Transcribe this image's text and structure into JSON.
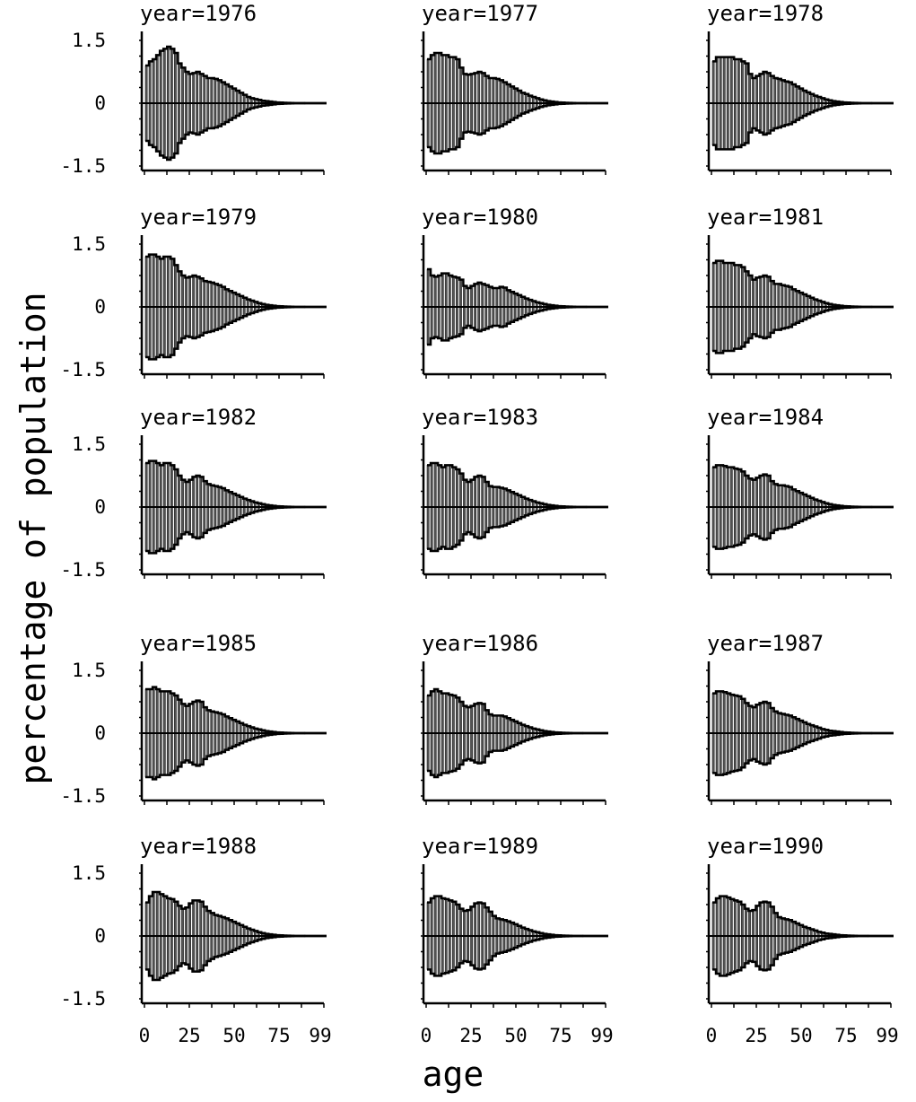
{
  "figure": {
    "ylabel": "percentage of population",
    "xlabel": "age"
  },
  "chart_data": {
    "type": "bar",
    "layout": "small-multiples 5 rows x 3 columns",
    "x_ticks": [
      "0",
      "25",
      "50",
      "75",
      "99"
    ],
    "y_ticks": [
      "1.5",
      "0",
      "-1.5"
    ],
    "xlim": [
      0,
      99
    ],
    "ylim": [
      -1.5,
      1.5
    ],
    "ages": [
      0,
      2,
      4,
      6,
      8,
      10,
      12,
      14,
      16,
      18,
      20,
      22,
      24,
      26,
      28,
      30,
      32,
      34,
      36,
      38,
      40,
      42,
      44,
      46,
      48,
      50,
      52,
      54,
      56,
      58,
      60,
      62,
      64,
      66,
      68,
      70,
      72,
      74,
      76,
      78,
      80,
      82,
      84,
      86,
      88,
      90,
      92,
      94,
      96,
      98
    ],
    "panels": [
      {
        "year": "1976",
        "title": "year=1976",
        "values": [
          0.9,
          1.0,
          1.05,
          1.15,
          1.25,
          1.3,
          1.35,
          1.3,
          1.2,
          0.95,
          0.85,
          0.75,
          0.7,
          0.72,
          0.75,
          0.7,
          0.65,
          0.6,
          0.6,
          0.58,
          0.55,
          0.5,
          0.45,
          0.4,
          0.35,
          0.3,
          0.25,
          0.2,
          0.15,
          0.12,
          0.1,
          0.08,
          0.06,
          0.05,
          0.04,
          0.03,
          0.02,
          0.015,
          0.01,
          0.008,
          0.005,
          0.004,
          0.003,
          0.002,
          0.001,
          0.001,
          0.001,
          0.0,
          0.0,
          0.0
        ]
      },
      {
        "year": "1977",
        "title": "year=1977",
        "values": [
          1.05,
          1.15,
          1.2,
          1.2,
          1.15,
          1.15,
          1.1,
          1.1,
          1.05,
          0.85,
          0.7,
          0.68,
          0.7,
          0.72,
          0.75,
          0.72,
          0.65,
          0.6,
          0.6,
          0.58,
          0.55,
          0.5,
          0.45,
          0.4,
          0.35,
          0.3,
          0.25,
          0.22,
          0.18,
          0.15,
          0.12,
          0.09,
          0.07,
          0.05,
          0.04,
          0.03,
          0.02,
          0.015,
          0.01,
          0.008,
          0.005,
          0.004,
          0.003,
          0.002,
          0.001,
          0.001,
          0.001,
          0.0,
          0.0,
          0.0
        ]
      },
      {
        "year": "1978",
        "title": "year=1978",
        "values": [
          1.0,
          1.1,
          1.1,
          1.1,
          1.1,
          1.1,
          1.05,
          1.05,
          1.0,
          0.95,
          0.7,
          0.6,
          0.65,
          0.7,
          0.75,
          0.72,
          0.65,
          0.6,
          0.58,
          0.55,
          0.52,
          0.5,
          0.45,
          0.4,
          0.35,
          0.3,
          0.26,
          0.22,
          0.18,
          0.15,
          0.12,
          0.09,
          0.07,
          0.05,
          0.04,
          0.03,
          0.02,
          0.015,
          0.01,
          0.008,
          0.005,
          0.004,
          0.003,
          0.002,
          0.001,
          0.001,
          0.001,
          0.0,
          0.0,
          0.0
        ]
      },
      {
        "year": "1979",
        "title": "year=1979",
        "values": [
          1.2,
          1.25,
          1.25,
          1.2,
          1.15,
          1.2,
          1.2,
          1.15,
          1.0,
          0.85,
          0.75,
          0.7,
          0.72,
          0.75,
          0.72,
          0.68,
          0.62,
          0.6,
          0.58,
          0.55,
          0.52,
          0.48,
          0.42,
          0.38,
          0.34,
          0.3,
          0.26,
          0.22,
          0.18,
          0.15,
          0.12,
          0.09,
          0.07,
          0.05,
          0.04,
          0.03,
          0.02,
          0.015,
          0.01,
          0.008,
          0.005,
          0.004,
          0.003,
          0.002,
          0.001,
          0.001,
          0.001,
          0.0,
          0.0,
          0.0
        ]
      },
      {
        "year": "1980",
        "title": "year=1980",
        "values": [
          0.9,
          0.75,
          0.72,
          0.75,
          0.8,
          0.8,
          0.75,
          0.72,
          0.7,
          0.65,
          0.5,
          0.45,
          0.5,
          0.55,
          0.58,
          0.55,
          0.52,
          0.48,
          0.45,
          0.45,
          0.48,
          0.46,
          0.4,
          0.36,
          0.32,
          0.28,
          0.24,
          0.2,
          0.17,
          0.14,
          0.11,
          0.09,
          0.07,
          0.05,
          0.04,
          0.03,
          0.02,
          0.015,
          0.01,
          0.008,
          0.005,
          0.004,
          0.003,
          0.002,
          0.001,
          0.001,
          0.001,
          0.0,
          0.0,
          0.0
        ]
      },
      {
        "year": "1981",
        "title": "year=1981",
        "values": [
          1.05,
          1.1,
          1.1,
          1.05,
          1.05,
          1.05,
          1.0,
          1.0,
          0.95,
          0.85,
          0.75,
          0.65,
          0.7,
          0.72,
          0.75,
          0.72,
          0.62,
          0.55,
          0.55,
          0.52,
          0.5,
          0.48,
          0.42,
          0.38,
          0.34,
          0.3,
          0.26,
          0.22,
          0.18,
          0.15,
          0.12,
          0.09,
          0.07,
          0.05,
          0.04,
          0.03,
          0.02,
          0.015,
          0.01,
          0.008,
          0.005,
          0.004,
          0.003,
          0.002,
          0.001,
          0.001,
          0.001,
          0.0,
          0.0,
          0.0
        ]
      },
      {
        "year": "1982",
        "title": "year=1982",
        "values": [
          1.05,
          1.1,
          1.1,
          1.05,
          1.0,
          1.05,
          1.05,
          1.0,
          0.9,
          0.75,
          0.65,
          0.6,
          0.65,
          0.72,
          0.75,
          0.72,
          0.62,
          0.55,
          0.52,
          0.5,
          0.48,
          0.45,
          0.4,
          0.36,
          0.32,
          0.28,
          0.24,
          0.2,
          0.17,
          0.14,
          0.11,
          0.09,
          0.07,
          0.05,
          0.04,
          0.03,
          0.02,
          0.015,
          0.01,
          0.008,
          0.005,
          0.004,
          0.003,
          0.002,
          0.001,
          0.001,
          0.001,
          0.0,
          0.0,
          0.0
        ]
      },
      {
        "year": "1983",
        "title": "year=1983",
        "values": [
          1.0,
          1.05,
          1.05,
          1.0,
          0.95,
          1.0,
          1.0,
          0.95,
          0.9,
          0.8,
          0.65,
          0.6,
          0.65,
          0.72,
          0.75,
          0.72,
          0.6,
          0.5,
          0.48,
          0.48,
          0.46,
          0.44,
          0.4,
          0.36,
          0.32,
          0.28,
          0.24,
          0.2,
          0.17,
          0.14,
          0.11,
          0.09,
          0.07,
          0.05,
          0.04,
          0.03,
          0.02,
          0.015,
          0.01,
          0.008,
          0.005,
          0.004,
          0.003,
          0.002,
          0.001,
          0.001,
          0.001,
          0.0,
          0.0,
          0.0
        ]
      },
      {
        "year": "1984",
        "title": "year=1984",
        "values": [
          0.95,
          1.0,
          1.0,
          0.98,
          0.95,
          0.95,
          0.92,
          0.9,
          0.85,
          0.75,
          0.68,
          0.65,
          0.7,
          0.75,
          0.78,
          0.75,
          0.62,
          0.55,
          0.52,
          0.52,
          0.5,
          0.48,
          0.42,
          0.38,
          0.34,
          0.3,
          0.26,
          0.22,
          0.18,
          0.15,
          0.12,
          0.09,
          0.07,
          0.05,
          0.04,
          0.03,
          0.02,
          0.015,
          0.01,
          0.008,
          0.005,
          0.004,
          0.003,
          0.002,
          0.001,
          0.001,
          0.001,
          0.0,
          0.0,
          0.0
        ]
      },
      {
        "year": "1985",
        "title": "year=1985",
        "values": [
          1.05,
          1.05,
          1.1,
          1.05,
          1.0,
          1.0,
          1.0,
          0.95,
          0.9,
          0.8,
          0.7,
          0.65,
          0.7,
          0.75,
          0.78,
          0.75,
          0.62,
          0.55,
          0.52,
          0.5,
          0.48,
          0.45,
          0.4,
          0.36,
          0.32,
          0.28,
          0.24,
          0.2,
          0.17,
          0.14,
          0.11,
          0.09,
          0.07,
          0.05,
          0.04,
          0.03,
          0.02,
          0.015,
          0.01,
          0.008,
          0.005,
          0.004,
          0.003,
          0.002,
          0.001,
          0.001,
          0.001,
          0.0,
          0.0,
          0.0
        ]
      },
      {
        "year": "1986",
        "title": "year=1986",
        "values": [
          0.9,
          1.0,
          1.05,
          1.0,
          0.95,
          0.95,
          0.92,
          0.9,
          0.85,
          0.75,
          0.65,
          0.62,
          0.65,
          0.7,
          0.72,
          0.7,
          0.55,
          0.45,
          0.42,
          0.42,
          0.42,
          0.4,
          0.36,
          0.32,
          0.28,
          0.24,
          0.2,
          0.17,
          0.14,
          0.11,
          0.09,
          0.07,
          0.05,
          0.04,
          0.03,
          0.02,
          0.015,
          0.01,
          0.008,
          0.005,
          0.004,
          0.003,
          0.002,
          0.001,
          0.001,
          0.001,
          0.0,
          0.0,
          0.0,
          0.0
        ]
      },
      {
        "year": "1987",
        "title": "year=1987",
        "values": [
          0.95,
          1.0,
          1.0,
          0.98,
          0.95,
          0.92,
          0.9,
          0.88,
          0.82,
          0.72,
          0.65,
          0.62,
          0.68,
          0.72,
          0.75,
          0.72,
          0.6,
          0.52,
          0.48,
          0.46,
          0.44,
          0.42,
          0.38,
          0.34,
          0.3,
          0.26,
          0.22,
          0.19,
          0.16,
          0.13,
          0.1,
          0.08,
          0.06,
          0.05,
          0.04,
          0.03,
          0.02,
          0.015,
          0.01,
          0.008,
          0.005,
          0.004,
          0.003,
          0.002,
          0.001,
          0.001,
          0.001,
          0.0,
          0.0,
          0.0
        ]
      },
      {
        "year": "1988",
        "title": "year=1988",
        "values": [
          0.8,
          0.95,
          1.05,
          1.05,
          1.0,
          0.95,
          0.9,
          0.88,
          0.82,
          0.72,
          0.65,
          0.68,
          0.78,
          0.85,
          0.85,
          0.82,
          0.7,
          0.6,
          0.55,
          0.5,
          0.48,
          0.45,
          0.42,
          0.38,
          0.34,
          0.3,
          0.26,
          0.22,
          0.18,
          0.15,
          0.12,
          0.09,
          0.07,
          0.05,
          0.04,
          0.03,
          0.02,
          0.015,
          0.01,
          0.008,
          0.005,
          0.004,
          0.003,
          0.002,
          0.001,
          0.001,
          0.001,
          0.0,
          0.0,
          0.0
        ]
      },
      {
        "year": "1989",
        "title": "year=1989",
        "values": [
          0.8,
          0.9,
          0.95,
          0.95,
          0.9,
          0.88,
          0.85,
          0.82,
          0.75,
          0.65,
          0.6,
          0.62,
          0.7,
          0.78,
          0.8,
          0.78,
          0.68,
          0.58,
          0.48,
          0.42,
          0.4,
          0.38,
          0.35,
          0.32,
          0.28,
          0.24,
          0.2,
          0.17,
          0.14,
          0.11,
          0.09,
          0.07,
          0.05,
          0.04,
          0.03,
          0.02,
          0.015,
          0.01,
          0.008,
          0.005,
          0.004,
          0.003,
          0.002,
          0.001,
          0.001,
          0.001,
          0.0,
          0.0,
          0.0,
          0.0
        ]
      },
      {
        "year": "1990",
        "title": "year=1990",
        "values": [
          0.8,
          0.9,
          0.95,
          0.95,
          0.92,
          0.88,
          0.85,
          0.82,
          0.75,
          0.65,
          0.6,
          0.62,
          0.72,
          0.8,
          0.82,
          0.8,
          0.7,
          0.55,
          0.45,
          0.42,
          0.4,
          0.38,
          0.34,
          0.3,
          0.26,
          0.22,
          0.19,
          0.16,
          0.13,
          0.1,
          0.08,
          0.06,
          0.05,
          0.04,
          0.03,
          0.02,
          0.015,
          0.01,
          0.008,
          0.005,
          0.004,
          0.003,
          0.002,
          0.001,
          0.001,
          0.001,
          0.0,
          0.0,
          0.0,
          0.0
        ]
      }
    ]
  }
}
